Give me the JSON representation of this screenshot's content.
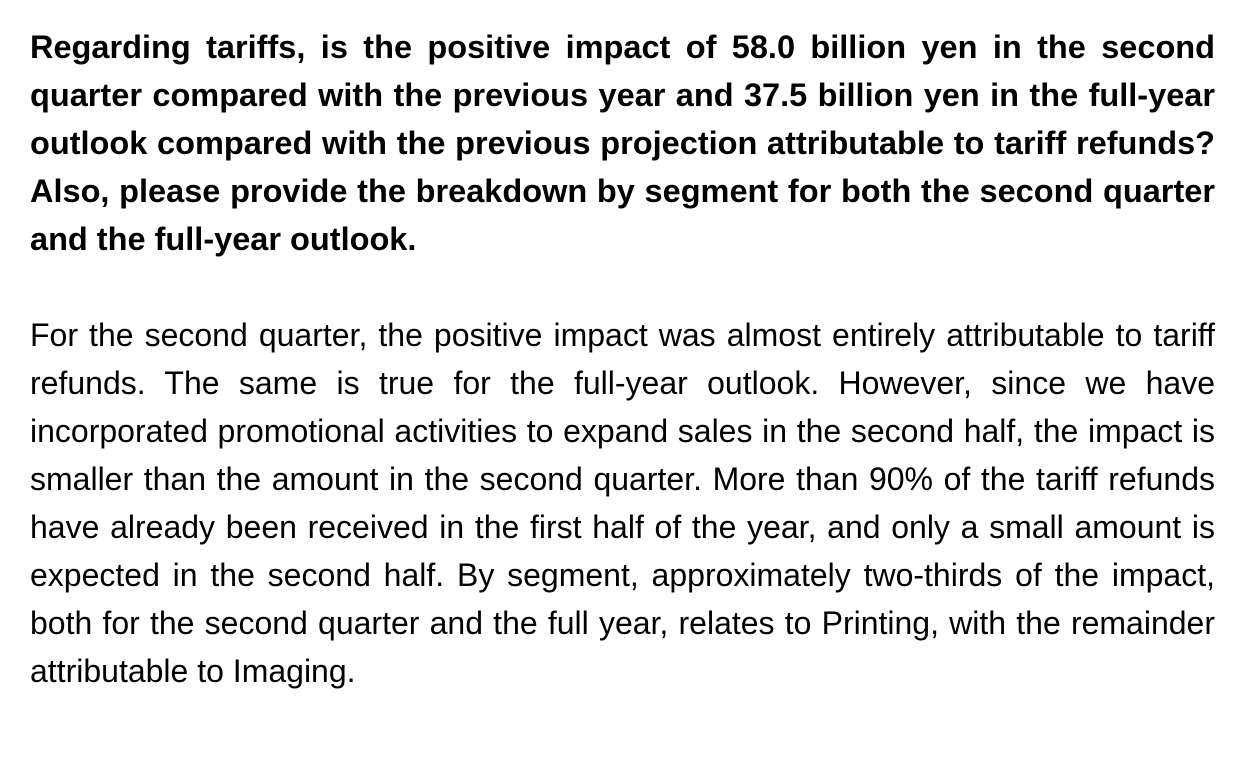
{
  "question": "Regarding tariffs, is the positive impact of 58.0 billion yen in the second quarter compared with the previous year and 37.5 billion yen in the full-year outlook compared with the previous projection attributable to tariff refunds? Also, please provide the breakdown by segment for both the second quarter and the full-year outlook.",
  "answer": "For the second quarter, the positive impact was almost entirely attributable to tariff refunds. The same is true for the full-year outlook. However, since we have incorporated promotional activities to expand sales in the second half, the impact is smaller than the amount in the second quarter. More than 90% of the tariff refunds have already been received in the first half of the year, and only a small amount is expected in the second half. By segment, approximately two-thirds of the impact, both for the second quarter and the full year, relates to Printing, with the remainder attributable to Imaging."
}
